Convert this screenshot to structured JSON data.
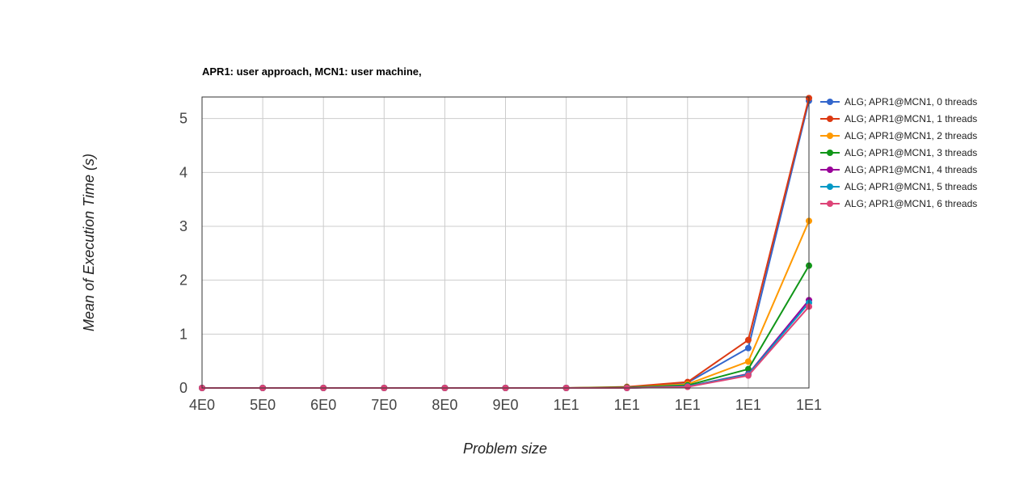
{
  "chart_data": {
    "type": "line",
    "title": "APR1: user approach, MCN1: user machine,",
    "xlabel": "Problem size",
    "ylabel": "Mean of Execution Time (s)",
    "categories": [
      "4E0",
      "5E0",
      "6E0",
      "7E0",
      "8E0",
      "9E0",
      "1E1",
      "1E1",
      "1E1",
      "1E1",
      "1E1"
    ],
    "ylim": [
      0,
      5.4
    ],
    "yticks": [
      0,
      1,
      2,
      3,
      4,
      5
    ],
    "grid": true,
    "legend_position": "right",
    "series": [
      {
        "name": "ALG; APR1@MCN1, 0 threads",
        "color": "#3366cc",
        "values": [
          0,
          0,
          0,
          0,
          0,
          0,
          0,
          0.01,
          0.1,
          0.74,
          5.33
        ]
      },
      {
        "name": "ALG; APR1@MCN1, 1 threads",
        "color": "#dc3912",
        "values": [
          0,
          0,
          0,
          0,
          0,
          0,
          0,
          0.02,
          0.11,
          0.89,
          5.38
        ]
      },
      {
        "name": "ALG; APR1@MCN1, 2 threads",
        "color": "#ff9900",
        "values": [
          0,
          0,
          0,
          0,
          0,
          0,
          0,
          0.01,
          0.07,
          0.49,
          3.1
        ]
      },
      {
        "name": "ALG; APR1@MCN1, 3 threads",
        "color": "#109618",
        "values": [
          0,
          0,
          0,
          0,
          0,
          0,
          0,
          0.01,
          0.05,
          0.35,
          2.27
        ]
      },
      {
        "name": "ALG; APR1@MCN1, 4 threads",
        "color": "#990099",
        "values": [
          0,
          0,
          0,
          0,
          0,
          0,
          0,
          0,
          0.03,
          0.26,
          1.63
        ]
      },
      {
        "name": "ALG; APR1@MCN1, 5 threads",
        "color": "#0099c6",
        "values": [
          0,
          0,
          0,
          0,
          0,
          0,
          0,
          0,
          0.03,
          0.25,
          1.58
        ]
      },
      {
        "name": "ALG; APR1@MCN1, 6 threads",
        "color": "#dd4477",
        "values": [
          0,
          0,
          0,
          0,
          0,
          0,
          0,
          0,
          0.02,
          0.23,
          1.51
        ]
      }
    ]
  }
}
